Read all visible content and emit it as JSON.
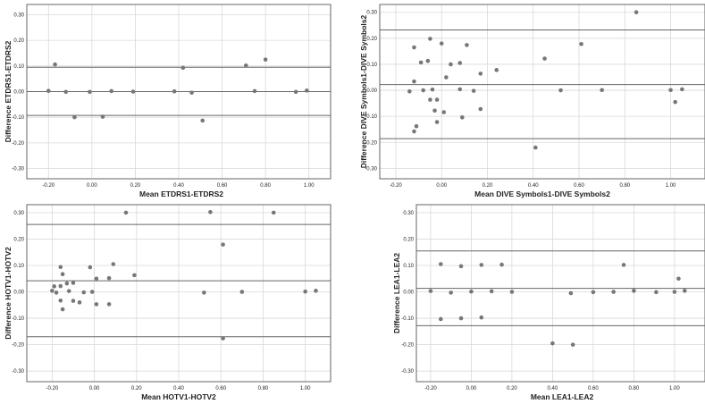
{
  "colors": {
    "background": "#ffffff",
    "frame": "#666666",
    "grid": "#d9d9d9",
    "line": "#666666",
    "point": "#777777"
  },
  "chart_data": [
    {
      "type": "scatter",
      "xlabel": "Mean ETDRS1-ETDRS2",
      "ylabel": "Difference ETDRS1-ETDRS2",
      "xlim": [
        -0.3,
        1.1
      ],
      "ylim": [
        -0.34,
        0.34
      ],
      "xticks": [
        -0.2,
        0.0,
        0.2,
        0.4,
        0.6,
        0.8,
        1.0
      ],
      "xtick_labels": [
        "-0.20",
        "0.00",
        "0.20",
        "0.40",
        "0.60",
        "0.80",
        "1.00"
      ],
      "yticks": [
        -0.3,
        -0.2,
        -0.1,
        0.0,
        0.1,
        0.2,
        0.3
      ],
      "ytick_labels": [
        "-0.30",
        "-0.20",
        "-0.10",
        "0.00",
        "0.10",
        "0.20",
        "0.30"
      ],
      "grid": true,
      "hlines": [
        0.095,
        0.0,
        -0.093
      ],
      "points": [
        [
          -0.2,
          0.003
        ],
        [
          -0.17,
          0.106
        ],
        [
          -0.12,
          -0.001
        ],
        [
          -0.08,
          -0.1
        ],
        [
          -0.01,
          -0.001
        ],
        [
          0.05,
          -0.098
        ],
        [
          0.09,
          0.002
        ],
        [
          0.19,
          0.0
        ],
        [
          0.38,
          0.001
        ],
        [
          0.42,
          0.093
        ],
        [
          0.46,
          -0.004
        ],
        [
          0.51,
          -0.113
        ],
        [
          0.71,
          0.102
        ],
        [
          0.75,
          0.002
        ],
        [
          0.8,
          0.125
        ],
        [
          0.94,
          -0.001
        ],
        [
          0.99,
          0.004
        ]
      ]
    },
    {
      "type": "scatter",
      "xlabel": "Mean DIVE Symbols1-DIVE Symbols2",
      "ylabel": "Difference DIVE Symbols1-DIVE Symbols2",
      "xlim": [
        -0.27,
        1.15
      ],
      "ylim": [
        -0.34,
        0.33
      ],
      "xticks": [
        -0.2,
        0.0,
        0.2,
        0.4,
        0.6,
        0.8,
        1.0
      ],
      "xtick_labels": [
        "-0.20",
        "0.00",
        "0.20",
        "0.40",
        "0.60",
        "0.80",
        "1.00"
      ],
      "yticks": [
        -0.3,
        -0.2,
        -0.1,
        0.0,
        0.1,
        0.2,
        0.3
      ],
      "ytick_labels": [
        "-0.30",
        "-0.20",
        "-0.10",
        "0.00",
        "0.10",
        "0.20",
        "0.30"
      ],
      "grid": true,
      "hlines": [
        0.232,
        0.022,
        -0.186
      ],
      "points": [
        [
          -0.14,
          -0.004
        ],
        [
          -0.12,
          0.165
        ],
        [
          -0.12,
          0.034
        ],
        [
          -0.12,
          -0.158
        ],
        [
          -0.11,
          -0.138
        ],
        [
          -0.09,
          0.107
        ],
        [
          -0.08,
          0.0
        ],
        [
          -0.06,
          0.113
        ],
        [
          -0.05,
          0.198
        ],
        [
          -0.05,
          -0.036
        ],
        [
          -0.04,
          0.003
        ],
        [
          -0.03,
          -0.078
        ],
        [
          -0.02,
          -0.122
        ],
        [
          -0.02,
          -0.036
        ],
        [
          0.0,
          0.18
        ],
        [
          0.01,
          -0.084
        ],
        [
          0.02,
          0.05
        ],
        [
          0.04,
          0.1
        ],
        [
          0.08,
          0.004
        ],
        [
          0.08,
          0.105
        ],
        [
          0.09,
          -0.104
        ],
        [
          0.11,
          0.174
        ],
        [
          0.14,
          -0.002
        ],
        [
          0.17,
          0.064
        ],
        [
          0.17,
          -0.072
        ],
        [
          0.24,
          0.078
        ],
        [
          0.41,
          -0.22
        ],
        [
          0.45,
          0.122
        ],
        [
          0.52,
          0.0
        ],
        [
          0.61,
          0.178
        ],
        [
          0.7,
          0.001
        ],
        [
          0.85,
          0.3
        ],
        [
          1.0,
          0.001
        ],
        [
          1.02,
          -0.045
        ],
        [
          1.05,
          0.004
        ]
      ]
    },
    {
      "type": "scatter",
      "xlabel": "Mean HOTV1-HOTV2",
      "ylabel": "Difference HOTV1-HOTV2",
      "xlim": [
        -0.32,
        1.12
      ],
      "ylim": [
        -0.34,
        0.33
      ],
      "xticks": [
        -0.2,
        0.0,
        0.2,
        0.4,
        0.6,
        0.8,
        1.0
      ],
      "xtick_labels": [
        "-0.20",
        "0.00",
        "0.20",
        "0.40",
        "0.60",
        "0.80",
        "1.00"
      ],
      "yticks": [
        -0.3,
        -0.2,
        -0.1,
        0.0,
        0.1,
        0.2,
        0.3
      ],
      "ytick_labels": [
        "-0.30",
        "-0.20",
        "-0.10",
        "0.00",
        "0.10",
        "0.20",
        "0.30"
      ],
      "grid": true,
      "hlines": [
        0.255,
        0.042,
        -0.17
      ],
      "points": [
        [
          -0.2,
          0.004
        ],
        [
          -0.19,
          0.021
        ],
        [
          -0.18,
          -0.003
        ],
        [
          -0.16,
          0.022
        ],
        [
          -0.16,
          0.094
        ],
        [
          -0.16,
          -0.033
        ],
        [
          -0.15,
          0.067
        ],
        [
          -0.15,
          -0.066
        ],
        [
          -0.13,
          0.032
        ],
        [
          -0.12,
          0.003
        ],
        [
          -0.1,
          0.034
        ],
        [
          -0.1,
          -0.034
        ],
        [
          -0.07,
          -0.04
        ],
        [
          -0.05,
          -0.002
        ],
        [
          -0.02,
          0.093
        ],
        [
          -0.01,
          0.0
        ],
        [
          0.01,
          0.05
        ],
        [
          0.01,
          -0.047
        ],
        [
          0.07,
          0.052
        ],
        [
          0.07,
          -0.047
        ],
        [
          0.09,
          0.105
        ],
        [
          0.15,
          0.3
        ],
        [
          0.19,
          0.063
        ],
        [
          0.52,
          -0.003
        ],
        [
          0.55,
          0.302
        ],
        [
          0.61,
          0.179
        ],
        [
          0.61,
          -0.176
        ],
        [
          0.7,
          0.0
        ],
        [
          0.85,
          0.3
        ],
        [
          1.0,
          0.001
        ],
        [
          1.05,
          0.004
        ]
      ]
    },
    {
      "type": "scatter",
      "xlabel": "Mean LEA1-LEA2",
      "ylabel": "Difference LEA1-LEA2",
      "xlim": [
        -0.27,
        1.15
      ],
      "ylim": [
        -0.34,
        0.33
      ],
      "xticks": [
        -0.2,
        0.0,
        0.2,
        0.4,
        0.6,
        0.8,
        1.0
      ],
      "xtick_labels": [
        "-0.20",
        "0.00",
        "0.20",
        "0.40",
        "0.60",
        "0.80",
        "1.00"
      ],
      "yticks": [
        -0.3,
        -0.2,
        -0.1,
        0.0,
        0.1,
        0.2,
        0.3
      ],
      "ytick_labels": [
        "-0.30",
        "-0.20",
        "-0.10",
        "0.00",
        "0.10",
        "0.20",
        "0.30"
      ],
      "grid": true,
      "hlines": [
        0.155,
        0.013,
        -0.128
      ],
      "points": [
        [
          -0.2,
          0.003
        ],
        [
          -0.15,
          0.105
        ],
        [
          -0.15,
          -0.103
        ],
        [
          -0.1,
          -0.003
        ],
        [
          -0.05,
          0.097
        ],
        [
          -0.05,
          -0.1
        ],
        [
          0.0,
          0.001
        ],
        [
          0.05,
          0.102
        ],
        [
          0.05,
          -0.097
        ],
        [
          0.1,
          0.002
        ],
        [
          0.15,
          0.103
        ],
        [
          0.2,
          0.0
        ],
        [
          0.4,
          -0.195
        ],
        [
          0.49,
          -0.005
        ],
        [
          0.5,
          -0.2
        ],
        [
          0.6,
          -0.001
        ],
        [
          0.7,
          0.0
        ],
        [
          0.75,
          0.102
        ],
        [
          0.8,
          0.004
        ],
        [
          0.91,
          -0.001
        ],
        [
          1.0,
          0.0
        ],
        [
          1.02,
          0.05
        ],
        [
          1.05,
          0.004
        ]
      ]
    }
  ]
}
